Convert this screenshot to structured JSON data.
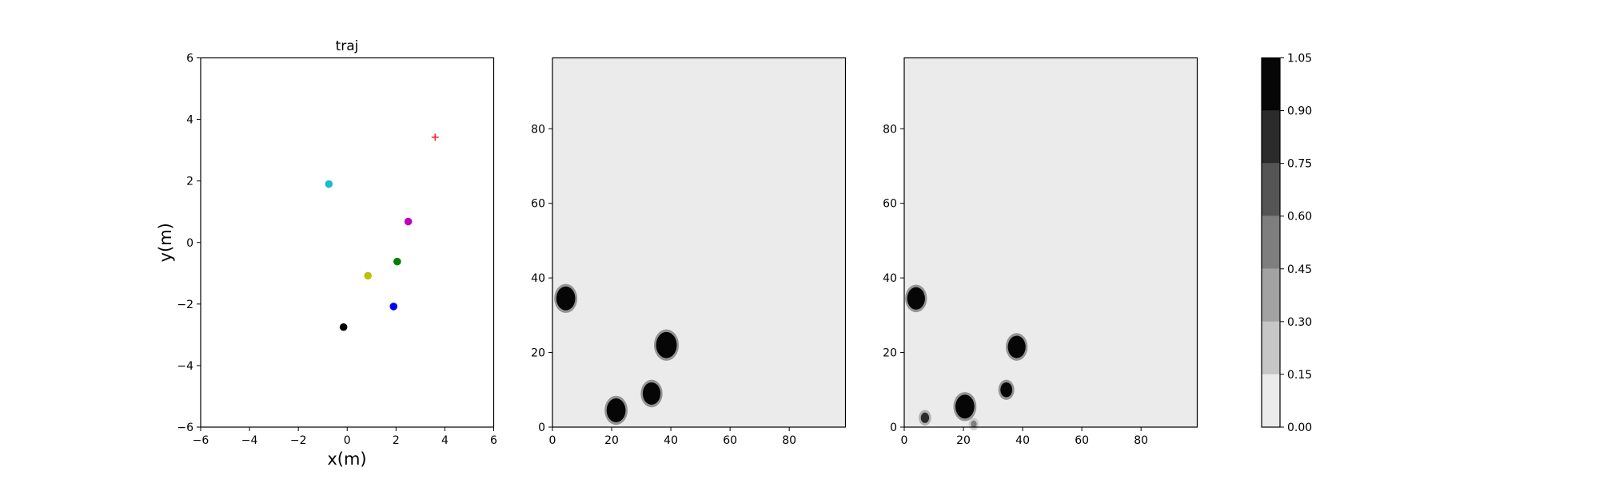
{
  "chart_data": [
    {
      "type": "scatter",
      "title": "traj",
      "xlabel": "x(m)",
      "ylabel": "y(m)",
      "xlim": [
        -6,
        6
      ],
      "ylim": [
        -6,
        6
      ],
      "xticks": [
        -6,
        -4,
        -2,
        0,
        2,
        4,
        6
      ],
      "yticks": [
        -6,
        -4,
        -2,
        0,
        2,
        4,
        6
      ],
      "grid": false,
      "series": [
        {
          "x": -0.75,
          "y": 1.9,
          "color": "#17becf",
          "marker": "circle"
        },
        {
          "x": 2.5,
          "y": 0.68,
          "color": "#bf00bf",
          "marker": "circle"
        },
        {
          "x": 2.05,
          "y": -0.62,
          "color": "#008000",
          "marker": "circle"
        },
        {
          "x": 0.85,
          "y": -1.08,
          "color": "#bfbf00",
          "marker": "circle"
        },
        {
          "x": 1.9,
          "y": -2.08,
          "color": "#0000ff",
          "marker": "circle"
        },
        {
          "x": -0.15,
          "y": -2.75,
          "color": "#000000",
          "marker": "circle"
        },
        {
          "x": 3.6,
          "y": 3.42,
          "color": "#ff0000",
          "marker": "plus"
        }
      ]
    },
    {
      "type": "heatmap",
      "title": "",
      "xlim": [
        0,
        99
      ],
      "ylim": [
        0,
        99
      ],
      "xticks": [
        0,
        20,
        40,
        60,
        80
      ],
      "yticks": [
        0,
        20,
        40,
        60,
        80
      ],
      "background_value": 0.08,
      "blobs": [
        {
          "x": 4.5,
          "y": 34.5,
          "r": 3.2,
          "value": 1.0
        },
        {
          "x": 38.5,
          "y": 22.0,
          "r": 3.5,
          "value": 1.0
        },
        {
          "x": 33.5,
          "y": 9.0,
          "r": 3.0,
          "value": 1.0
        },
        {
          "x": 21.5,
          "y": 4.5,
          "r": 3.2,
          "value": 1.0
        }
      ]
    },
    {
      "type": "heatmap",
      "title": "",
      "xlim": [
        0,
        99
      ],
      "ylim": [
        0,
        99
      ],
      "xticks": [
        0,
        20,
        40,
        60,
        80
      ],
      "yticks": [
        0,
        20,
        40,
        60,
        80
      ],
      "background_value": 0.08,
      "blobs": [
        {
          "x": 4.0,
          "y": 34.5,
          "r": 3.0,
          "value": 1.0
        },
        {
          "x": 38.0,
          "y": 21.5,
          "r": 3.0,
          "value": 1.0
        },
        {
          "x": 34.5,
          "y": 10.0,
          "r": 2.0,
          "value": 1.0
        },
        {
          "x": 20.5,
          "y": 5.5,
          "r": 3.2,
          "value": 1.0
        },
        {
          "x": 7.0,
          "y": 2.5,
          "r": 1.4,
          "value": 0.8
        },
        {
          "x": 23.5,
          "y": 0.8,
          "r": 1.0,
          "value": 0.45
        }
      ]
    }
  ],
  "colorbar": {
    "levels": [
      0.0,
      0.15,
      0.3,
      0.45,
      0.6,
      0.75,
      0.9,
      1.05
    ],
    "tick_labels": [
      "0.00",
      "0.15",
      "0.30",
      "0.45",
      "0.60",
      "0.75",
      "0.90",
      "1.05"
    ],
    "colors": [
      "#ebebeb",
      "#c6c6c6",
      "#a2a2a2",
      "#7e7e7e",
      "#555555",
      "#2b2b2b",
      "#060606"
    ]
  }
}
